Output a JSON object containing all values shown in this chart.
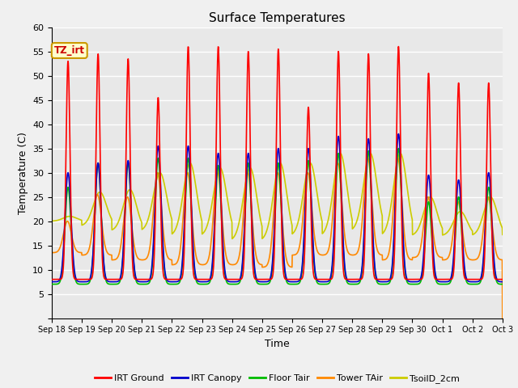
{
  "title": "Surface Temperatures",
  "xlabel": "Time",
  "ylabel": "Temperature (C)",
  "ylim": [
    0,
    60
  ],
  "yticks": [
    0,
    5,
    10,
    15,
    20,
    25,
    30,
    35,
    40,
    45,
    50,
    55,
    60
  ],
  "background_color": "#e8e8e8",
  "figure_color": "#f0f0f0",
  "grid_color": "#ffffff",
  "annotation_text": "TZ_irt",
  "legend": [
    {
      "label": "IRT Ground",
      "color": "#ff0000"
    },
    {
      "label": "IRT Canopy",
      "color": "#0000cc"
    },
    {
      "label": "Floor Tair",
      "color": "#00bb00"
    },
    {
      "label": "Tower TAir",
      "color": "#ff8800"
    },
    {
      "label": "TsoilD_2cm",
      "color": "#cccc00"
    }
  ],
  "series": {
    "IRT_Ground": {
      "color": "#ff0000",
      "lw": 1.2
    },
    "IRT_Canopy": {
      "color": "#0000cc",
      "lw": 1.2
    },
    "Floor_Tair": {
      "color": "#00bb00",
      "lw": 1.2
    },
    "Tower_TAir": {
      "color": "#ff8800",
      "lw": 1.2
    },
    "TsoilD_2cm": {
      "color": "#cccc00",
      "lw": 1.2
    }
  },
  "xtick_labels": [
    "Sep 18",
    "Sep 19",
    "Sep 20",
    "Sep 21",
    "Sep 22",
    "Sep 23",
    "Sep 24",
    "Sep 25",
    "Sep 26",
    "Sep 27",
    "Sep 28",
    "Sep 29",
    "Sep 30",
    "Oct 1",
    "Oct 2",
    "Oct 3"
  ],
  "num_days": 15
}
